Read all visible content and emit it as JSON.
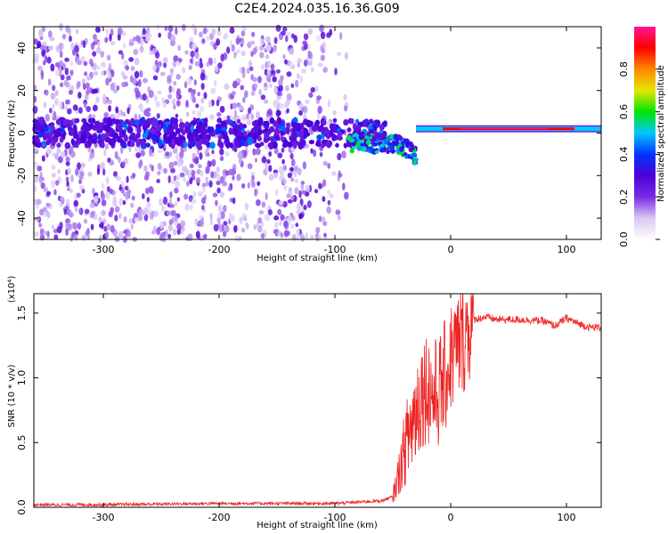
{
  "title": "C2E4.2024.035.16.36.G09",
  "colors": {
    "snr_line": "#ee2222",
    "colormap": [
      "#ffffff",
      "#d8c8f4",
      "#7a2be6",
      "#4d00d8",
      "#0033ff",
      "#00c8ff",
      "#00e600",
      "#e6e600",
      "#ff8800",
      "#ff0000",
      "#ff1493"
    ]
  },
  "chart_data": [
    {
      "type": "heatmap",
      "title": "",
      "xlabel": "Height of straight line (km)",
      "ylabel": "Frequency (Hz)",
      "xlim": [
        -360,
        130
      ],
      "ylim": [
        -50,
        50
      ],
      "x_ticks": [
        -300,
        -200,
        -100,
        0,
        100
      ],
      "y_ticks": [
        -40,
        -20,
        0,
        20,
        40
      ],
      "colorbar": {
        "label": "Normalized spectral amplitude",
        "range": [
          0.0,
          1.0
        ],
        "ticks": [
          "0.0",
          "0.2",
          "0.4",
          "0.6",
          "0.8"
        ]
      },
      "features": {
        "noise_region_x": [
          -360,
          -90
        ],
        "central_band_freq": 0,
        "dip_near_x": -60,
        "dip_freq": -5,
        "narrow_line_x": [
          -30,
          130
        ],
        "narrow_line_freq": 2,
        "peak_amplitude": 1.0
      }
    },
    {
      "type": "line",
      "title": "",
      "xlabel": "Height of straight line (km)",
      "ylabel": "SNR (10 * v/v)",
      "y_scale_label": "(x10⁴)",
      "xlim": [
        -360,
        130
      ],
      "ylim": [
        0.0,
        1.65
      ],
      "x_ticks": [
        -300,
        -200,
        -100,
        0,
        100
      ],
      "y_ticks": [
        "0.0",
        "0.5",
        "1.0",
        "1.5"
      ],
      "series": [
        {
          "x": [
            -360,
            -300,
            -200,
            -150,
            -100,
            -80,
            -60,
            -50,
            -45,
            -40,
            -35,
            -30,
            -25,
            -20,
            -15,
            -10,
            -5,
            0,
            10,
            20,
            30,
            40,
            60,
            80,
            90,
            100,
            110,
            120,
            130
          ],
          "y": [
            0.02,
            0.02,
            0.03,
            0.03,
            0.03,
            0.04,
            0.05,
            0.08,
            0.25,
            0.45,
            0.6,
            0.75,
            0.9,
            0.95,
            0.85,
            0.9,
            1.0,
            1.15,
            1.3,
            1.45,
            1.47,
            1.45,
            1.45,
            1.44,
            1.4,
            1.46,
            1.42,
            1.39,
            1.39
          ]
        }
      ]
    }
  ]
}
